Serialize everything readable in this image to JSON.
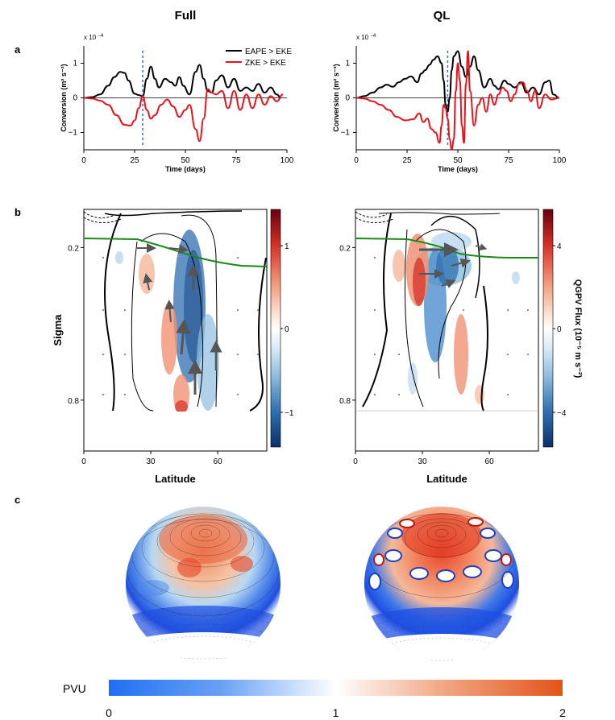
{
  "colors": {
    "eape": "#000000",
    "zke": "#e8141b",
    "vline": "#2a6fdb",
    "tropopause": "#1a8a1a",
    "pos": "#d73027",
    "neg": "#2f6fb0",
    "pvu_low": "#1f6ff2",
    "pvu_mid": "#ffffff",
    "pvu_high": "#e2541a"
  },
  "headers": {
    "left": "Full",
    "right": "QL"
  },
  "panel_labels": {
    "a": "a",
    "b": "b",
    "c": "c"
  },
  "chart_data": [
    {
      "id": "a-full",
      "type": "line",
      "exponent_label": "x 10",
      "exponent_sup": "−4",
      "ylabel": "Conversion (m² s⁻³)",
      "xlabel": "Time (days)",
      "xlim": [
        0,
        100
      ],
      "ylim": [
        -1.5,
        1.5
      ],
      "xticks": [
        0,
        25,
        50,
        75,
        100
      ],
      "yticks": [
        -1,
        0,
        1
      ],
      "vline": 29,
      "series": [
        {
          "name": "EAPE > EKE",
          "color": "#000000",
          "x": [
            0,
            4,
            8,
            12,
            15,
            18,
            20,
            22,
            25,
            27,
            29,
            31,
            33,
            35,
            37,
            40,
            43,
            45,
            47,
            49,
            52,
            55,
            57,
            59,
            61,
            63,
            65,
            68,
            71,
            74,
            77,
            80,
            83,
            86,
            89,
            92,
            95,
            97
          ],
          "y": [
            0,
            0.02,
            0.1,
            0.35,
            0.6,
            0.75,
            0.72,
            0.5,
            0.12,
            0.08,
            0.05,
            0.55,
            0.9,
            0.55,
            0.3,
            0.55,
            0.45,
            0.35,
            0.6,
            0.35,
            0.1,
            0.75,
            0.95,
            0.55,
            0.2,
            0.15,
            0.5,
            0.65,
            0.3,
            0.55,
            0.2,
            0.3,
            0.2,
            0.4,
            0.15,
            0.3,
            0.1,
            0
          ]
        },
        {
          "name": "ZKE > EKE",
          "color": "#e8141b",
          "x": [
            0,
            4,
            8,
            12,
            16,
            20,
            23,
            25,
            27,
            29,
            31,
            33,
            35,
            38,
            41,
            44,
            47,
            50,
            52,
            55,
            57,
            59,
            61,
            63,
            65,
            68,
            71,
            74,
            77,
            80,
            83,
            86,
            89,
            92,
            95,
            98
          ],
          "y": [
            0,
            -0.02,
            -0.08,
            -0.2,
            -0.5,
            -0.78,
            -0.8,
            -0.65,
            -0.3,
            0.05,
            -0.35,
            -0.6,
            -0.5,
            -0.2,
            -0.05,
            -0.25,
            -0.55,
            -0.35,
            -0.2,
            -0.9,
            -1.25,
            -0.6,
            0.25,
            0.15,
            0.1,
            0.2,
            -0.3,
            0.2,
            -0.35,
            0.1,
            -0.3,
            0.1,
            -0.2,
            0.05,
            -0.1,
            0.1
          ]
        }
      ]
    },
    {
      "id": "a-ql",
      "type": "line",
      "exponent_label": "x 10",
      "exponent_sup": "−4",
      "ylabel": "Conversion (m² s⁻³)",
      "xlabel": "Time (days)",
      "xlim": [
        0,
        100
      ],
      "ylim": [
        -1.5,
        1.5
      ],
      "xticks": [
        0,
        25,
        50,
        75,
        100
      ],
      "yticks": [
        -1,
        0,
        1
      ],
      "vline": 45,
      "series": [
        {
          "name": "EAPE > EKE",
          "color": "#000000",
          "x": [
            0,
            4,
            8,
            12,
            15,
            18,
            21,
            24,
            27,
            30,
            32,
            34,
            36,
            38,
            40,
            42,
            43,
            44,
            45,
            46,
            47,
            48,
            50,
            52,
            54,
            56,
            58,
            60,
            63,
            66,
            68,
            70,
            73,
            75,
            78,
            81,
            84,
            87,
            90,
            93,
            95,
            97,
            100
          ],
          "y": [
            0,
            0.05,
            0.15,
            0.3,
            0.38,
            0.32,
            0.45,
            0.55,
            0.62,
            0.45,
            0.7,
            0.8,
            0.95,
            1.1,
            1.2,
            1.0,
            0.5,
            -0.2,
            -0.4,
            0.0,
            0.8,
            1.2,
            1.35,
            0.9,
            0.6,
            0.9,
            1.2,
            0.8,
            0.3,
            0.55,
            0.35,
            0.25,
            0.5,
            0.4,
            0.3,
            0.45,
            0.15,
            0.3,
            0.1,
            0.45,
            0.5,
            0.1,
            0
          ]
        },
        {
          "name": "ZKE > EKE",
          "color": "#e8141b",
          "x": [
            0,
            4,
            8,
            12,
            16,
            20,
            24,
            28,
            31,
            33,
            35,
            37,
            39,
            41,
            42,
            43,
            44,
            45,
            46,
            47,
            48,
            49,
            50,
            51,
            52,
            53,
            54,
            55,
            56,
            58,
            60,
            62,
            64,
            66,
            68,
            70,
            72,
            74,
            76,
            78,
            80,
            82,
            84,
            86,
            88,
            90,
            93,
            96,
            100
          ],
          "y": [
            0,
            -0.02,
            -0.1,
            -0.2,
            -0.35,
            -0.55,
            -0.65,
            -0.62,
            -0.45,
            -0.7,
            -0.6,
            -0.9,
            -1.0,
            -1.3,
            -0.8,
            -0.2,
            -0.3,
            -0.6,
            -1.2,
            -1.5,
            -1.2,
            0.2,
            1.0,
            0.5,
            -0.8,
            -1.3,
            0.4,
            1.35,
            0.2,
            -0.8,
            -0.2,
            0.0,
            -0.4,
            0.1,
            -0.2,
            0.1,
            0.3,
            0.2,
            -0.1,
            0.1,
            0.4,
            0.45,
            0.2,
            -0.1,
            0.2,
            -0.3,
            0.1,
            -0.05,
            0
          ]
        }
      ]
    },
    {
      "id": "b-full",
      "type": "heatmap",
      "ylabel": "Sigma",
      "xlabel": "Latitude",
      "xticks": [
        0,
        30,
        60
      ],
      "yticks": [
        0.2,
        0.8
      ],
      "colorbar_ticks": [
        "1",
        "0",
        "−1"
      ]
    },
    {
      "id": "b-ql",
      "type": "heatmap",
      "xlabel": "Latitude",
      "xticks": [
        0,
        30,
        60
      ],
      "yticks": [
        0.2,
        0.8
      ],
      "colorbar_ticks": [
        "4",
        "0",
        "−4"
      ],
      "colorbar_label": "QGPV Flux (10⁻⁵ m s⁻²)"
    }
  ],
  "pvu": {
    "label": "PVU",
    "ticks": [
      "0",
      "1",
      "2"
    ],
    "values": [
      0,
      1,
      2
    ]
  }
}
